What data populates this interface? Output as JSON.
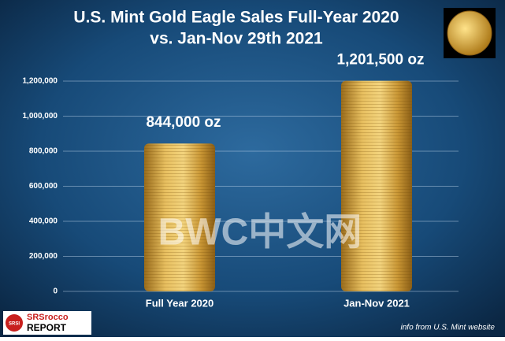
{
  "chart_data": {
    "type": "bar",
    "title": "U.S. Mint Gold Eagle Sales Full-Year 2020",
    "subtitle": "vs. Jan-Nov 29th 2021",
    "categories": [
      "Full Year 2020",
      "Jan-Nov 2021"
    ],
    "values": [
      844000,
      1201500
    ],
    "value_labels": [
      "844,000 oz",
      "1,201,500 oz"
    ],
    "color": "#d9a93a",
    "ylim": [
      0,
      1200000
    ],
    "yticks": [
      0,
      {
        "value": 200000,
        "label": "200,000"
      },
      {
        "value": 400000,
        "label": "400,000"
      },
      {
        "value": 600000,
        "label": "600,000"
      },
      {
        "value": 800000,
        "label": "800,000"
      },
      {
        "value": 1000000,
        "label": "1,000,000"
      },
      {
        "value": 1200000,
        "label": "1,200,000"
      }
    ],
    "grid": true,
    "watermark": "BWC中文网",
    "logo": {
      "badge": "SRSI",
      "name": "SRSrocco",
      "report": "REPORT"
    },
    "source": "info from U.S. Mint website"
  }
}
